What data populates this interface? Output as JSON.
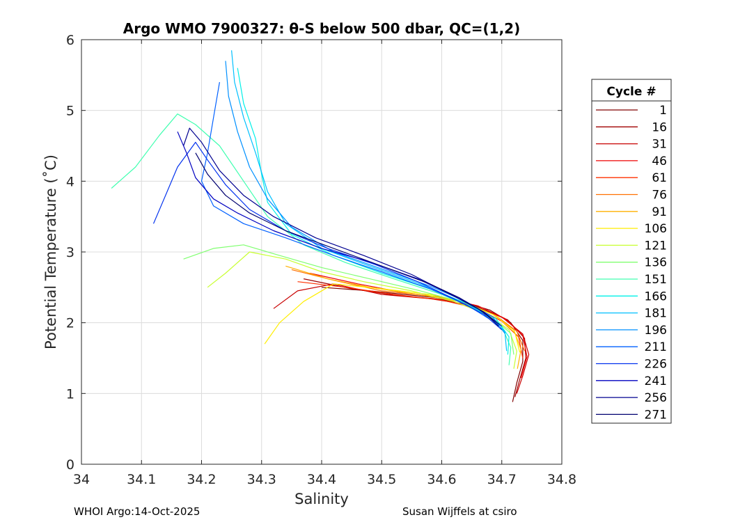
{
  "chart_data": {
    "type": "line",
    "title": "Argo WMO 7900327: θ-S below 500 dbar,  QC=(1,2)",
    "xlabel": "Salinity",
    "ylabel": "Potential Temperature (˚C)",
    "xlim": [
      34.0,
      34.8
    ],
    "ylim": [
      0,
      6
    ],
    "x_ticks": [
      "34",
      "34.1",
      "34.2",
      "34.3",
      "34.4",
      "34.5",
      "34.6",
      "34.7",
      "34.8"
    ],
    "y_ticks": [
      "0",
      "1",
      "2",
      "3",
      "4",
      "5",
      "6"
    ],
    "grid": true,
    "legend": {
      "title": "Cycle #",
      "position": "right",
      "entries": [
        {
          "label": "1",
          "color": "#800000"
        },
        {
          "label": "16",
          "color": "#a00000"
        },
        {
          "label": "31",
          "color": "#c80000"
        },
        {
          "label": "46",
          "color": "#ee0000"
        },
        {
          "label": "61",
          "color": "#ff3000"
        },
        {
          "label": "76",
          "color": "#ff7000"
        },
        {
          "label": "91",
          "color": "#ffb000"
        },
        {
          "label": "106",
          "color": "#ffee00"
        },
        {
          "label": "121",
          "color": "#c8ff30"
        },
        {
          "label": "136",
          "color": "#80ff70"
        },
        {
          "label": "151",
          "color": "#40ffb0"
        },
        {
          "label": "166",
          "color": "#00f0e8"
        },
        {
          "label": "181",
          "color": "#00c0ff"
        },
        {
          "label": "196",
          "color": "#0090ff"
        },
        {
          "label": "211",
          "color": "#0060ff"
        },
        {
          "label": "226",
          "color": "#0030ee"
        },
        {
          "label": "241",
          "color": "#0000c0"
        },
        {
          "label": "256",
          "color": "#000090"
        },
        {
          "label": "271",
          "color": "#000070"
        }
      ]
    },
    "series": [
      {
        "name": "1",
        "points": [
          [
            34.4,
            2.5
          ],
          [
            34.48,
            2.45
          ],
          [
            34.56,
            2.38
          ],
          [
            34.62,
            2.33
          ],
          [
            34.68,
            2.18
          ],
          [
            34.715,
            2.0
          ],
          [
            34.735,
            1.75
          ],
          [
            34.735,
            1.45
          ],
          [
            34.725,
            1.15
          ],
          [
            34.718,
            0.88
          ]
        ]
      },
      {
        "name": "16",
        "points": [
          [
            34.37,
            2.62
          ],
          [
            34.45,
            2.48
          ],
          [
            34.53,
            2.38
          ],
          [
            34.6,
            2.33
          ],
          [
            34.66,
            2.22
          ],
          [
            34.71,
            2.04
          ],
          [
            34.738,
            1.78
          ],
          [
            34.74,
            1.5
          ],
          [
            34.73,
            1.2
          ],
          [
            34.722,
            0.95
          ]
        ]
      },
      {
        "name": "31",
        "points": [
          [
            34.32,
            2.2
          ],
          [
            34.36,
            2.45
          ],
          [
            34.42,
            2.55
          ],
          [
            34.5,
            2.4
          ],
          [
            34.58,
            2.34
          ],
          [
            34.64,
            2.26
          ],
          [
            34.7,
            2.08
          ],
          [
            34.735,
            1.84
          ],
          [
            34.745,
            1.55
          ],
          [
            34.735,
            1.25
          ],
          [
            34.725,
            1.0
          ]
        ]
      },
      {
        "name": "46",
        "points": [
          [
            34.38,
            2.7
          ],
          [
            34.46,
            2.55
          ],
          [
            34.54,
            2.42
          ],
          [
            34.6,
            2.36
          ],
          [
            34.66,
            2.24
          ],
          [
            34.705,
            2.06
          ],
          [
            34.735,
            1.82
          ],
          [
            34.742,
            1.52
          ],
          [
            34.732,
            1.22
          ]
        ]
      },
      {
        "name": "61",
        "points": [
          [
            34.36,
            2.58
          ],
          [
            34.44,
            2.5
          ],
          [
            34.52,
            2.4
          ],
          [
            34.6,
            2.32
          ],
          [
            34.66,
            2.2
          ],
          [
            34.7,
            2.02
          ],
          [
            34.728,
            1.8
          ],
          [
            34.735,
            1.5
          ]
        ]
      },
      {
        "name": "76",
        "points": [
          [
            34.35,
            2.75
          ],
          [
            34.42,
            2.6
          ],
          [
            34.5,
            2.45
          ],
          [
            34.58,
            2.38
          ],
          [
            34.64,
            2.28
          ],
          [
            34.69,
            2.1
          ],
          [
            34.725,
            1.88
          ],
          [
            34.738,
            1.6
          ]
        ]
      },
      {
        "name": "91",
        "points": [
          [
            34.34,
            2.8
          ],
          [
            34.41,
            2.62
          ],
          [
            34.48,
            2.5
          ],
          [
            34.56,
            2.4
          ],
          [
            34.63,
            2.3
          ],
          [
            34.685,
            2.12
          ],
          [
            34.72,
            1.9
          ],
          [
            34.732,
            1.62
          ],
          [
            34.726,
            1.35
          ]
        ]
      },
      {
        "name": "106",
        "points": [
          [
            34.305,
            1.7
          ],
          [
            34.33,
            2.0
          ],
          [
            34.37,
            2.3
          ],
          [
            34.42,
            2.55
          ],
          [
            34.5,
            2.48
          ],
          [
            34.58,
            2.4
          ],
          [
            34.64,
            2.28
          ],
          [
            34.69,
            2.1
          ],
          [
            34.722,
            1.86
          ],
          [
            34.73,
            1.58
          ]
        ]
      },
      {
        "name": "121",
        "points": [
          [
            34.21,
            2.5
          ],
          [
            34.24,
            2.7
          ],
          [
            34.28,
            3.0
          ],
          [
            34.34,
            2.9
          ],
          [
            34.4,
            2.72
          ],
          [
            34.47,
            2.58
          ],
          [
            34.55,
            2.45
          ],
          [
            34.62,
            2.3
          ],
          [
            34.675,
            2.12
          ],
          [
            34.712,
            1.9
          ],
          [
            34.725,
            1.6
          ],
          [
            34.72,
            1.35
          ]
        ]
      },
      {
        "name": "136",
        "points": [
          [
            34.17,
            2.9
          ],
          [
            34.22,
            3.05
          ],
          [
            34.27,
            3.1
          ],
          [
            34.33,
            2.95
          ],
          [
            34.4,
            2.78
          ],
          [
            34.48,
            2.62
          ],
          [
            34.56,
            2.46
          ],
          [
            34.63,
            2.3
          ],
          [
            34.68,
            2.1
          ],
          [
            34.715,
            1.85
          ],
          [
            34.72,
            1.55
          ]
        ]
      },
      {
        "name": "151",
        "points": [
          [
            34.05,
            3.9
          ],
          [
            34.09,
            4.2
          ],
          [
            34.13,
            4.65
          ],
          [
            34.16,
            4.95
          ],
          [
            34.19,
            4.8
          ],
          [
            34.23,
            4.5
          ],
          [
            34.27,
            4.0
          ],
          [
            34.31,
            3.5
          ],
          [
            34.37,
            3.1
          ],
          [
            34.44,
            2.85
          ],
          [
            34.52,
            2.62
          ],
          [
            34.6,
            2.4
          ],
          [
            34.66,
            2.18
          ],
          [
            34.7,
            1.95
          ],
          [
            34.715,
            1.65
          ],
          [
            34.712,
            1.4
          ]
        ]
      },
      {
        "name": "166",
        "points": [
          [
            34.26,
            5.6
          ],
          [
            34.27,
            5.1
          ],
          [
            34.29,
            4.6
          ],
          [
            34.3,
            4.1
          ],
          [
            34.31,
            3.7
          ],
          [
            34.35,
            3.25
          ],
          [
            34.42,
            2.95
          ],
          [
            34.5,
            2.7
          ],
          [
            34.58,
            2.48
          ],
          [
            34.64,
            2.28
          ],
          [
            34.69,
            2.06
          ],
          [
            34.712,
            1.8
          ],
          [
            34.71,
            1.55
          ]
        ]
      },
      {
        "name": "181",
        "points": [
          [
            34.25,
            5.85
          ],
          [
            34.255,
            5.4
          ],
          [
            34.27,
            4.9
          ],
          [
            34.29,
            4.4
          ],
          [
            34.31,
            3.85
          ],
          [
            34.34,
            3.4
          ],
          [
            34.4,
            3.05
          ],
          [
            34.48,
            2.8
          ],
          [
            34.56,
            2.56
          ],
          [
            34.62,
            2.34
          ],
          [
            34.675,
            2.12
          ],
          [
            34.705,
            1.88
          ],
          [
            34.708,
            1.6
          ]
        ]
      },
      {
        "name": "196",
        "points": [
          [
            34.24,
            5.7
          ],
          [
            34.245,
            5.2
          ],
          [
            34.26,
            4.7
          ],
          [
            34.28,
            4.2
          ],
          [
            34.31,
            3.75
          ],
          [
            34.35,
            3.35
          ],
          [
            34.42,
            3.0
          ],
          [
            34.5,
            2.76
          ],
          [
            34.58,
            2.52
          ],
          [
            34.64,
            2.3
          ],
          [
            34.685,
            2.08
          ],
          [
            34.705,
            1.85
          ]
        ]
      },
      {
        "name": "211",
        "points": [
          [
            34.23,
            5.4
          ],
          [
            34.22,
            4.9
          ],
          [
            34.21,
            4.4
          ],
          [
            34.2,
            4.0
          ],
          [
            34.22,
            3.65
          ],
          [
            34.27,
            3.4
          ],
          [
            34.34,
            3.2
          ],
          [
            34.42,
            2.95
          ],
          [
            34.5,
            2.72
          ],
          [
            34.58,
            2.48
          ],
          [
            34.64,
            2.26
          ],
          [
            34.68,
            2.05
          ]
        ]
      },
      {
        "name": "226",
        "points": [
          [
            34.12,
            3.4
          ],
          [
            34.14,
            3.8
          ],
          [
            34.16,
            4.2
          ],
          [
            34.19,
            4.55
          ],
          [
            34.21,
            4.3
          ],
          [
            34.24,
            3.95
          ],
          [
            34.28,
            3.6
          ],
          [
            34.34,
            3.3
          ],
          [
            34.41,
            3.05
          ],
          [
            34.49,
            2.82
          ],
          [
            34.56,
            2.58
          ],
          [
            34.62,
            2.34
          ],
          [
            34.67,
            2.12
          ],
          [
            34.7,
            1.9
          ]
        ]
      },
      {
        "name": "241",
        "points": [
          [
            34.16,
            4.7
          ],
          [
            34.175,
            4.4
          ],
          [
            34.19,
            4.05
          ],
          [
            34.22,
            3.75
          ],
          [
            34.26,
            3.55
          ],
          [
            34.32,
            3.3
          ],
          [
            34.4,
            3.05
          ],
          [
            34.48,
            2.86
          ],
          [
            34.56,
            2.62
          ],
          [
            34.62,
            2.38
          ],
          [
            34.67,
            2.15
          ],
          [
            34.7,
            1.95
          ]
        ]
      },
      {
        "name": "256",
        "points": [
          [
            34.17,
            4.5
          ],
          [
            34.18,
            4.75
          ],
          [
            34.2,
            4.55
          ],
          [
            34.23,
            4.15
          ],
          [
            34.27,
            3.8
          ],
          [
            34.32,
            3.5
          ],
          [
            34.39,
            3.2
          ],
          [
            34.47,
            2.95
          ],
          [
            34.55,
            2.68
          ],
          [
            34.61,
            2.42
          ],
          [
            34.66,
            2.2
          ],
          [
            34.695,
            1.98
          ]
        ]
      },
      {
        "name": "271",
        "points": [
          [
            34.19,
            4.4
          ],
          [
            34.21,
            4.1
          ],
          [
            34.24,
            3.8
          ],
          [
            34.28,
            3.55
          ],
          [
            34.34,
            3.3
          ],
          [
            34.42,
            3.05
          ],
          [
            34.5,
            2.8
          ],
          [
            34.58,
            2.55
          ],
          [
            34.63,
            2.35
          ],
          [
            34.67,
            2.15
          ],
          [
            34.695,
            1.95
          ]
        ]
      }
    ]
  },
  "footer": {
    "left": "WHOI Argo:14-Oct-2025",
    "right": "Susan Wijffels at csiro"
  }
}
